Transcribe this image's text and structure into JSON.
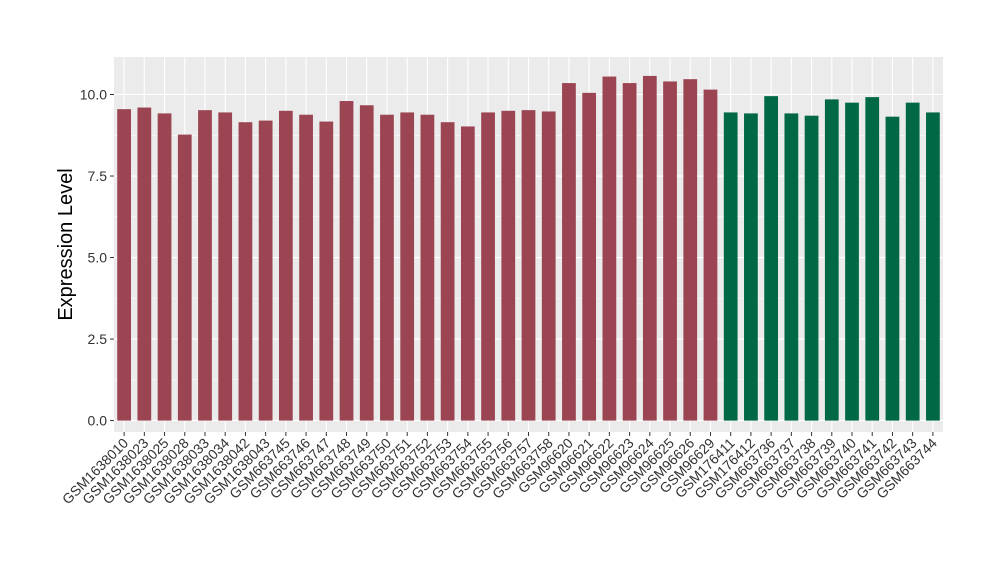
{
  "chart_data": {
    "type": "bar",
    "title": "",
    "xlabel": "",
    "ylabel": "Expression Level",
    "ylim": [
      -0.35,
      11.15
    ],
    "yticks": [
      0.0,
      2.5,
      5.0,
      7.5,
      10.0
    ],
    "ytick_labels": [
      "0.0",
      "2.5",
      "5.0",
      "7.5",
      "10.0"
    ],
    "grid": true,
    "legend": "none",
    "panel_color": "#ebebeb",
    "gridline_color": "#ffffff",
    "categories": [
      "GSM1638010",
      "GSM1638023",
      "GSM1638025",
      "GSM1638028",
      "GSM1638033",
      "GSM1638034",
      "GSM1638042",
      "GSM1638043",
      "GSM663745",
      "GSM663746",
      "GSM663747",
      "GSM663748",
      "GSM663749",
      "GSM663750",
      "GSM663751",
      "GSM663752",
      "GSM663753",
      "GSM663754",
      "GSM663755",
      "GSM663756",
      "GSM663757",
      "GSM663758",
      "GSM96620",
      "GSM96621",
      "GSM96622",
      "GSM96623",
      "GSM96624",
      "GSM96625",
      "GSM96626",
      "GSM96629",
      "GSM176411",
      "GSM176412",
      "GSM663736",
      "GSM663737",
      "GSM663738",
      "GSM663739",
      "GSM663740",
      "GSM663741",
      "GSM663742",
      "GSM663743",
      "GSM663744"
    ],
    "values": [
      9.55,
      9.6,
      9.42,
      8.77,
      9.52,
      9.45,
      9.15,
      9.2,
      9.5,
      9.38,
      9.17,
      9.8,
      9.67,
      9.38,
      9.45,
      9.38,
      9.15,
      9.02,
      9.45,
      9.5,
      9.52,
      9.48,
      10.35,
      10.05,
      10.55,
      10.35,
      10.57,
      10.4,
      10.47,
      10.15,
      9.45,
      9.42,
      9.95,
      9.42,
      9.35,
      9.85,
      9.75,
      9.92,
      9.32,
      9.75,
      9.45
    ],
    "groups": [
      "a",
      "a",
      "a",
      "a",
      "a",
      "a",
      "a",
      "a",
      "a",
      "a",
      "a",
      "a",
      "a",
      "a",
      "a",
      "a",
      "a",
      "a",
      "a",
      "a",
      "a",
      "a",
      "a",
      "a",
      "a",
      "a",
      "a",
      "a",
      "a",
      "a",
      "b",
      "b",
      "b",
      "b",
      "b",
      "b",
      "b",
      "b",
      "b",
      "b",
      "b"
    ],
    "group_colors": {
      "a": "#9b4452",
      "b": "#006845"
    }
  }
}
